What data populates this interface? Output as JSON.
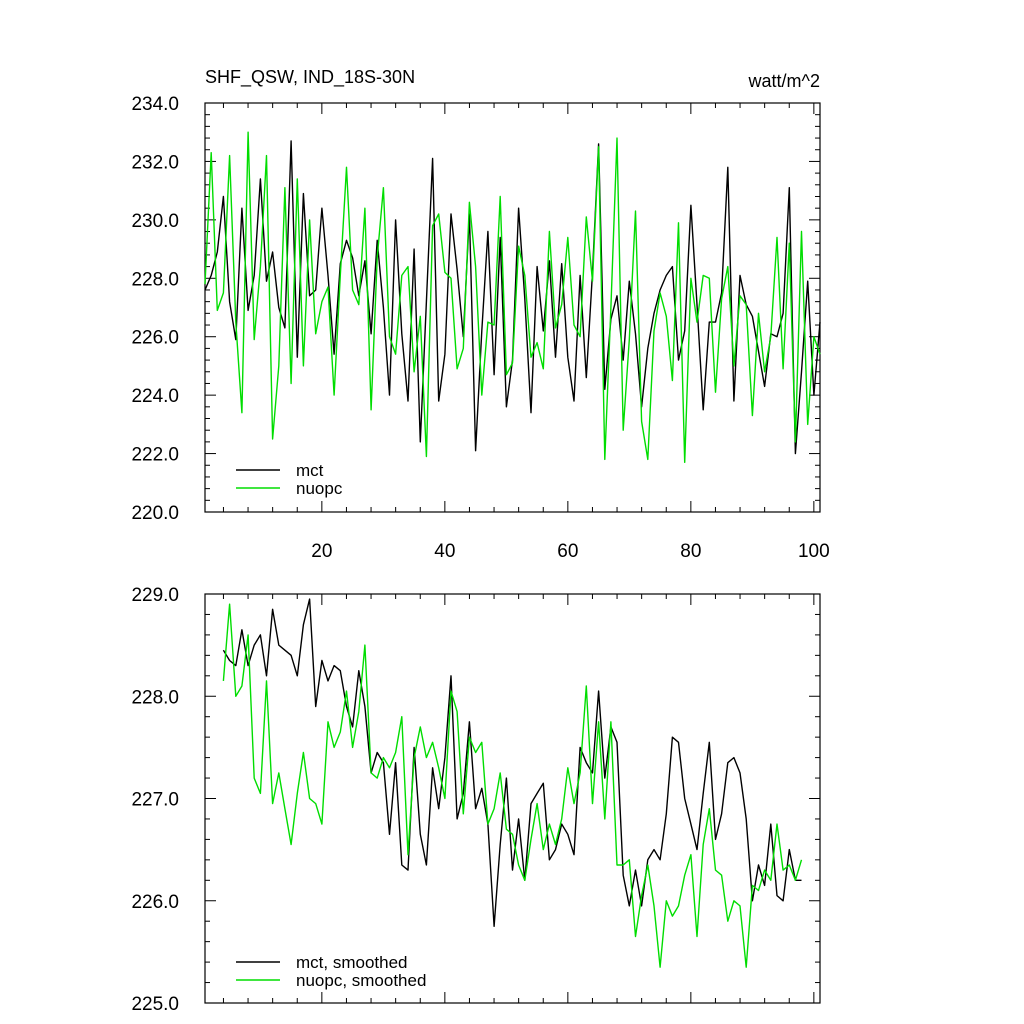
{
  "header": {
    "title": "SHF_QSW, IND_18S-30N",
    "units": "watt/m^2"
  },
  "colors": {
    "mct": "#000000",
    "nuopc": "#00dd00",
    "axis": "#000000",
    "background": "#ffffff"
  },
  "chart_data": [
    {
      "type": "line",
      "title": "SHF_QSW, IND_18S-30N",
      "ylabel_right": "watt/m^2",
      "xlim": [
        1,
        101
      ],
      "ylim": [
        220,
        234
      ],
      "xticks": [
        20,
        40,
        60,
        80,
        100
      ],
      "xtick_labels": [
        "20",
        "40",
        "60",
        "80",
        "100"
      ],
      "yticks": [
        220,
        222,
        224,
        226,
        228,
        230,
        232,
        234
      ],
      "ytick_labels": [
        "220.0",
        "222.0",
        "224.0",
        "226.0",
        "228.0",
        "230.0",
        "232.0",
        "234.0"
      ],
      "legend": "bottom-left",
      "series": [
        {
          "name": "mct",
          "color": "#000000",
          "x": [
            1,
            2,
            3,
            4,
            5,
            6,
            7,
            8,
            9,
            10,
            11,
            12,
            13,
            14,
            15,
            16,
            17,
            18,
            19,
            20,
            21,
            22,
            23,
            24,
            25,
            26,
            27,
            28,
            29,
            30,
            31,
            32,
            33,
            34,
            35,
            36,
            37,
            38,
            39,
            40,
            41,
            42,
            43,
            44,
            45,
            46,
            47,
            48,
            49,
            50,
            51,
            52,
            53,
            54,
            55,
            56,
            57,
            58,
            59,
            60,
            61,
            62,
            63,
            64,
            65,
            66,
            67,
            68,
            69,
            70,
            71,
            72,
            73,
            74,
            75,
            76,
            77,
            78,
            79,
            80,
            81,
            82,
            83,
            84,
            85,
            86,
            87,
            88,
            89,
            90,
            91,
            92,
            93,
            94,
            95,
            96,
            97,
            98,
            99,
            100,
            101
          ],
          "values": [
            227.6,
            228.1,
            228.9,
            230.8,
            227.2,
            225.9,
            230.4,
            226.9,
            228.1,
            231.4,
            227.9,
            228.9,
            227.0,
            226.3,
            232.7,
            225.3,
            230.9,
            227.4,
            227.6,
            230.4,
            228.1,
            225.4,
            228.5,
            229.3,
            228.7,
            227.4,
            228.6,
            226.1,
            229.3,
            227.0,
            224.0,
            230.0,
            226.1,
            223.8,
            229.0,
            222.4,
            227.2,
            232.1,
            223.8,
            225.4,
            230.2,
            228.3,
            226.0,
            230.2,
            222.1,
            226.2,
            229.6,
            224.7,
            229.4,
            223.6,
            225.2,
            230.4,
            227.3,
            223.4,
            228.4,
            226.2,
            228.6,
            225.3,
            228.5,
            225.3,
            223.8,
            228.1,
            224.6,
            228.2,
            232.6,
            224.2,
            226.6,
            227.4,
            225.2,
            227.9,
            226.1,
            223.6,
            225.6,
            226.8,
            227.6,
            228.1,
            228.4,
            225.2,
            226.2,
            230.5,
            227.1,
            223.5,
            226.5,
            226.5,
            227.5,
            231.8,
            223.8,
            228.1,
            227.1,
            226.7,
            225.5,
            224.3,
            226.1,
            226.0,
            226.8,
            231.1,
            222.0,
            224.8,
            227.9,
            224.0,
            226.5
          ]
        },
        {
          "name": "nuopc",
          "color": "#00dd00",
          "x": [
            1,
            2,
            3,
            4,
            5,
            6,
            7,
            8,
            9,
            10,
            11,
            12,
            13,
            14,
            15,
            16,
            17,
            18,
            19,
            20,
            21,
            22,
            23,
            24,
            25,
            26,
            27,
            28,
            29,
            30,
            31,
            32,
            33,
            34,
            35,
            36,
            37,
            38,
            39,
            40,
            41,
            42,
            43,
            44,
            45,
            46,
            47,
            48,
            49,
            50,
            51,
            52,
            53,
            54,
            55,
            56,
            57,
            58,
            59,
            60,
            61,
            62,
            63,
            64,
            65,
            66,
            67,
            68,
            69,
            70,
            71,
            72,
            73,
            74,
            75,
            76,
            77,
            78,
            79,
            80,
            81,
            82,
            83,
            84,
            85,
            86,
            87,
            88,
            89,
            90,
            91,
            92,
            93,
            94,
            95,
            96,
            97,
            98,
            99,
            100,
            101
          ],
          "values": [
            227.8,
            232.3,
            226.9,
            227.5,
            232.2,
            226.5,
            223.4,
            233.0,
            225.9,
            228.4,
            232.2,
            222.5,
            225.0,
            231.1,
            224.4,
            231.4,
            225.0,
            230.0,
            226.1,
            227.2,
            227.7,
            224.0,
            228.1,
            231.8,
            227.6,
            227.1,
            230.4,
            223.5,
            228.7,
            231.1,
            226.0,
            225.4,
            228.1,
            228.4,
            224.8,
            226.7,
            221.9,
            229.8,
            230.2,
            228.2,
            228.0,
            224.9,
            225.6,
            230.6,
            228.4,
            224.0,
            226.5,
            226.4,
            230.8,
            224.7,
            225.1,
            229.1,
            228.1,
            225.3,
            225.8,
            224.9,
            229.6,
            226.3,
            227.1,
            229.4,
            226.4,
            226.0,
            230.1,
            227.9,
            232.5,
            221.8,
            227.0,
            232.8,
            222.8,
            225.9,
            230.3,
            223.1,
            221.8,
            226.2,
            227.5,
            226.7,
            224.5,
            229.9,
            221.7,
            228.0,
            226.5,
            228.1,
            228.0,
            224.1,
            227.3,
            228.4,
            225.0,
            227.4,
            227.1,
            223.3,
            226.8,
            224.8,
            226.0,
            229.4,
            224.9,
            229.2,
            222.4,
            229.6,
            223.0,
            226.0,
            225.4
          ]
        }
      ]
    },
    {
      "type": "line",
      "title": "",
      "xlim": [
        1,
        101
      ],
      "ylim": [
        225,
        229
      ],
      "yticks": [
        225,
        226,
        227,
        228,
        229
      ],
      "ytick_labels": [
        "225.0",
        "226.0",
        "227.0",
        "228.0",
        "229.0"
      ],
      "legend": "bottom-left",
      "series": [
        {
          "name": "mct, smoothed",
          "color": "#000000",
          "x": [
            4,
            5,
            6,
            7,
            8,
            9,
            10,
            11,
            12,
            13,
            14,
            15,
            16,
            17,
            18,
            19,
            20,
            21,
            22,
            23,
            24,
            25,
            26,
            27,
            28,
            29,
            30,
            31,
            32,
            33,
            34,
            35,
            36,
            37,
            38,
            39,
            40,
            41,
            42,
            43,
            44,
            45,
            46,
            47,
            48,
            49,
            50,
            51,
            52,
            53,
            54,
            55,
            56,
            57,
            58,
            59,
            60,
            61,
            62,
            63,
            64,
            65,
            66,
            67,
            68,
            69,
            70,
            71,
            72,
            73,
            74,
            75,
            76,
            77,
            78,
            79,
            80,
            81,
            82,
            83,
            84,
            85,
            86,
            87,
            88,
            89,
            90,
            91,
            92,
            93,
            94,
            95,
            96,
            97,
            98
          ],
          "values": [
            228.45,
            228.35,
            228.3,
            228.65,
            228.3,
            228.5,
            228.6,
            228.2,
            228.85,
            228.5,
            228.45,
            228.4,
            228.2,
            228.7,
            228.95,
            227.9,
            228.35,
            228.15,
            228.3,
            228.25,
            227.9,
            227.7,
            228.25,
            227.9,
            227.25,
            227.45,
            227.35,
            226.65,
            227.35,
            226.35,
            226.3,
            227.5,
            226.65,
            226.35,
            227.3,
            226.9,
            227.4,
            228.2,
            226.8,
            227.05,
            227.75,
            226.9,
            227.1,
            226.75,
            225.75,
            226.55,
            227.2,
            226.3,
            226.8,
            226.2,
            226.95,
            227.05,
            227.15,
            226.4,
            226.5,
            226.75,
            226.65,
            226.45,
            227.5,
            227.35,
            227.25,
            228.05,
            227.2,
            227.7,
            227.55,
            226.25,
            225.95,
            226.3,
            225.95,
            226.4,
            226.5,
            226.4,
            226.85,
            227.6,
            227.55,
            227.0,
            226.75,
            226.5,
            227.05,
            227.55,
            226.6,
            226.85,
            227.35,
            227.4,
            227.25,
            226.8,
            226.0,
            226.35,
            226.15,
            226.75,
            226.05,
            226.0,
            226.5,
            226.2,
            226.2
          ]
        },
        {
          "name": "nuopc, smoothed",
          "color": "#00dd00",
          "x": [
            4,
            5,
            6,
            7,
            8,
            9,
            10,
            11,
            12,
            13,
            14,
            15,
            16,
            17,
            18,
            19,
            20,
            21,
            22,
            23,
            24,
            25,
            26,
            27,
            28,
            29,
            30,
            31,
            32,
            33,
            34,
            35,
            36,
            37,
            38,
            39,
            40,
            41,
            42,
            43,
            44,
            45,
            46,
            47,
            48,
            49,
            50,
            51,
            52,
            53,
            54,
            55,
            56,
            57,
            58,
            59,
            60,
            61,
            62,
            63,
            64,
            65,
            66,
            67,
            68,
            69,
            70,
            71,
            72,
            73,
            74,
            75,
            76,
            77,
            78,
            79,
            80,
            81,
            82,
            83,
            84,
            85,
            86,
            87,
            88,
            89,
            90,
            91,
            92,
            93,
            94,
            95,
            96,
            97,
            98
          ],
          "values": [
            228.15,
            228.9,
            228.0,
            228.1,
            228.6,
            227.2,
            227.05,
            228.15,
            226.95,
            227.25,
            226.9,
            226.55,
            227.05,
            227.45,
            227.0,
            226.95,
            226.75,
            227.75,
            227.5,
            227.65,
            228.05,
            227.5,
            227.85,
            228.5,
            227.25,
            227.2,
            227.4,
            227.3,
            227.45,
            227.8,
            226.45,
            227.4,
            227.7,
            227.4,
            227.55,
            227.3,
            227.0,
            228.05,
            227.85,
            226.85,
            227.6,
            227.45,
            227.55,
            226.75,
            226.9,
            227.25,
            226.7,
            226.65,
            226.35,
            226.2,
            226.6,
            226.95,
            226.5,
            226.75,
            226.55,
            226.8,
            227.3,
            226.95,
            227.25,
            228.1,
            226.95,
            227.75,
            226.8,
            227.75,
            226.35,
            226.35,
            226.4,
            225.65,
            226.05,
            226.35,
            225.95,
            225.35,
            226.0,
            225.85,
            225.95,
            226.25,
            226.45,
            225.65,
            226.55,
            226.9,
            226.3,
            226.25,
            225.8,
            226.0,
            225.95,
            225.35,
            226.15,
            226.1,
            226.3,
            226.2,
            226.75,
            226.3,
            226.35,
            226.2,
            226.4
          ]
        }
      ]
    }
  ]
}
